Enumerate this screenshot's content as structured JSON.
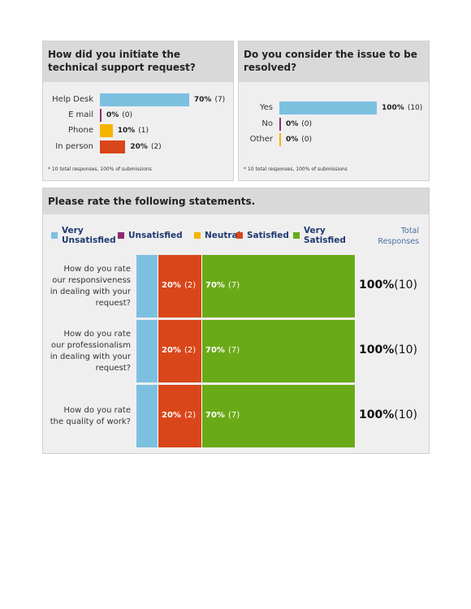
{
  "chart_data": [
    {
      "type": "bar",
      "title": "How did you initiate the technical support request?",
      "categories": [
        "Help Desk",
        "E mail",
        "Phone",
        "In person"
      ],
      "values": [
        70,
        0,
        10,
        20
      ],
      "value_labels": [
        "70%",
        "0%",
        "10%",
        "20%"
      ],
      "count_labels": [
        "(7)",
        "(0)",
        "(1)",
        "(2)"
      ],
      "colors": [
        "#7cc0e0",
        "#8b2d6e",
        "#f6b400",
        "#d9461a"
      ],
      "footnote": "* 10 total responses, 100% of submissions"
    },
    {
      "type": "bar",
      "title": "Do you consider the issue to be resolved?",
      "categories": [
        "Yes",
        "No",
        "Other"
      ],
      "values": [
        100,
        0,
        0
      ],
      "value_labels": [
        "100%",
        "0%",
        "0%"
      ],
      "count_labels": [
        "(10)",
        "(0)",
        "(0)"
      ],
      "colors": [
        "#7cc0e0",
        "#8b2d6e",
        "#f6b400"
      ],
      "footnote": "* 10 total responses, 100% of submissions"
    },
    {
      "type": "stacked_bar",
      "title": "Please rate the following statements.",
      "categories": [
        "How do you rate our responsiveness in dealing with your request?",
        "How do you rate our professionalism in dealing with your request?",
        "How do you rate the quality of work?"
      ],
      "series": [
        {
          "name": "Very Unsatisfied",
          "color": "#7cc0e0",
          "values": [
            10,
            10,
            10
          ]
        },
        {
          "name": "Unsatisfied",
          "color": "#8b2d6e",
          "values": [
            0,
            0,
            0
          ]
        },
        {
          "name": "Neutral",
          "color": "#f6b400",
          "values": [
            0,
            0,
            0
          ]
        },
        {
          "name": "Satisfied",
          "color": "#d9461a",
          "values": [
            20,
            20,
            20
          ],
          "value_labels": [
            "20%",
            "20%",
            "20%"
          ],
          "count_labels": [
            "(2)",
            "(2)",
            "(2)"
          ]
        },
        {
          "name": "Very Satisfied",
          "color": "#6aaa18",
          "values": [
            70,
            70,
            70
          ],
          "value_labels": [
            "70%",
            "70%",
            "70%"
          ],
          "count_labels": [
            "(7)",
            "(7)",
            "(7)"
          ]
        }
      ],
      "total_header": "Total Responses",
      "total_labels": [
        "100%",
        "100%",
        "100%"
      ],
      "total_count_labels": [
        "(10)",
        "(10)",
        "(10)"
      ]
    }
  ]
}
